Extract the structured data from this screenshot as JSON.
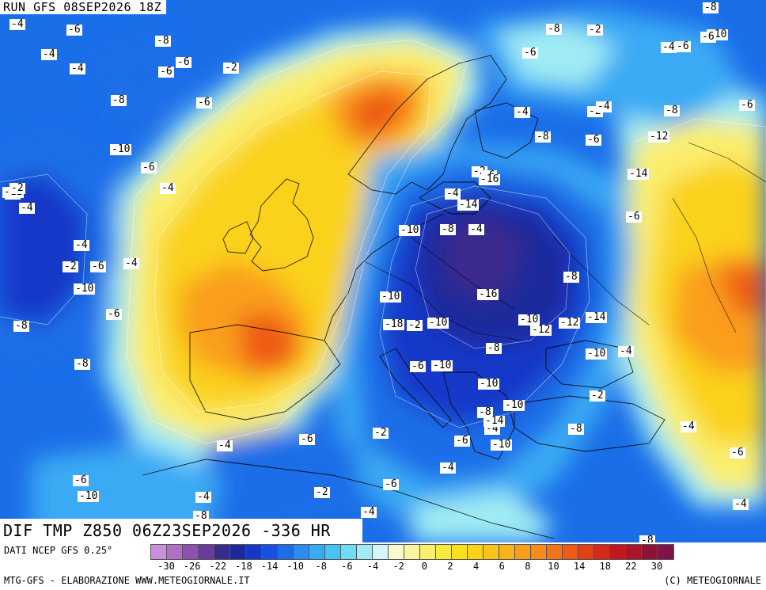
{
  "header": {
    "run": "RUN GFS 08SEP2026 18Z"
  },
  "title": "DIF TMP Z850 06Z23SEP2026 -336 HR",
  "footer": {
    "data_source": "DATI NCEP GFS 0.25°",
    "credit_left": "MTG-GFS - ELABORAZIONE WWW.METEOGIORNALE.IT",
    "credit_right": "(C) METEOGIORNALE"
  },
  "legend": {
    "ticks": [
      "-30",
      "-26",
      "-22",
      "-18",
      "-14",
      "-10",
      "-8",
      "-6",
      "-4",
      "-2",
      "0",
      "2",
      "4",
      "6",
      "8",
      "10",
      "14",
      "18",
      "22",
      "30"
    ],
    "colors": [
      "#c890d8",
      "#b070c8",
      "#9050b0",
      "#6a3c9a",
      "#3a2c8c",
      "#1e2a9c",
      "#1638c8",
      "#1a50e0",
      "#1a6ee8",
      "#2a8cf0",
      "#3aaaf4",
      "#48c4f4",
      "#70dcf4",
      "#a0ecf4",
      "#d0f8f8",
      "#fafad0",
      "#faf4a0",
      "#faee6e",
      "#faea3c",
      "#fae01a",
      "#fad21a",
      "#fac21a",
      "#fab21a",
      "#fa9e1a",
      "#fa8a1a",
      "#f47218",
      "#ee5a16",
      "#e44016",
      "#d42818",
      "#c0181c",
      "#a81428",
      "#901236",
      "#80124a"
    ]
  },
  "map": {
    "colors": {
      "very_cold": "#3a2c8c",
      "cold_core": "#1e2a9c",
      "cold": "#1638c8",
      "cool": "#1a6ee8",
      "mild_cool": "#3aaaf4",
      "near_zero": "#a0ecf4",
      "warm_light": "#faee6e",
      "warm": "#fad21a",
      "hot": "#fa9e1a",
      "very_hot": "#ee5a16"
    },
    "contour_labels": [
      "-4",
      "-6",
      "-8",
      "-6",
      "-4",
      "-4",
      "-6",
      "-2",
      "-4",
      "-6",
      "-8",
      "-10",
      "-12",
      "-2",
      "-4",
      "-6",
      "-6",
      "-8",
      "-2",
      "-4",
      "-6",
      "-8",
      "-10",
      "-6",
      "-4",
      "-4",
      "-6",
      "-2",
      "-4",
      "-10",
      "-6",
      "-8",
      "-8",
      "-10",
      "-10",
      "-8",
      "-4",
      "-2",
      "-6",
      "-14",
      "-4",
      "-16",
      "-18",
      "-2",
      "-10",
      "-6",
      "-10",
      "-8",
      "-10",
      "-16",
      "-8",
      "-10",
      "-12",
      "-14",
      "-12",
      "-8",
      "-4",
      "-10",
      "-14",
      "-10",
      "-6",
      "-2",
      "-4",
      "-4",
      "-8",
      "-14",
      "-6",
      "-12",
      "-8",
      "-6",
      "-4",
      "-10",
      "-8",
      "-2",
      "-4",
      "-6",
      "-4",
      "-8",
      "-2",
      "-6",
      "-4",
      "-6",
      "-4",
      "-2",
      "-6",
      "-4",
      "-4",
      "-8",
      "-6",
      "-10"
    ]
  }
}
